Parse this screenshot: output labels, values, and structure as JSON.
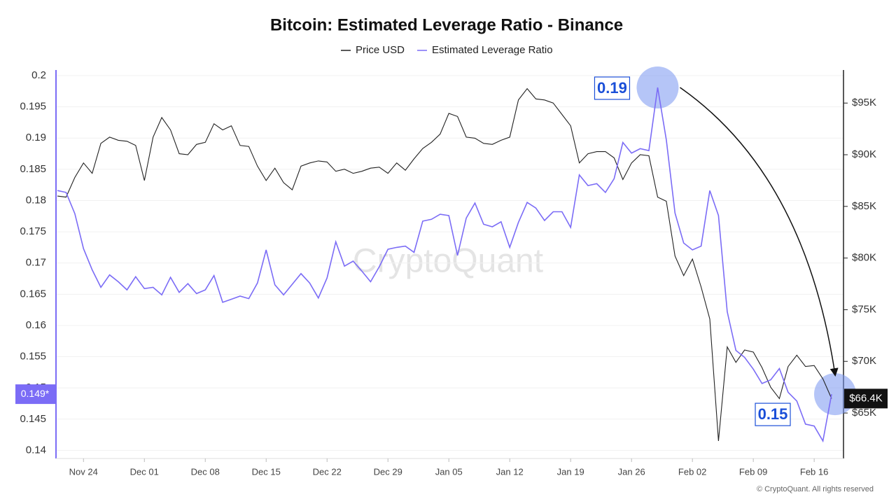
{
  "chart_data": {
    "type": "line",
    "title": "Bitcoin: Estimated Leverage Ratio - Binance",
    "watermark": "CryptoQuant",
    "footer": "© CryptoQuant. All rights reserved",
    "grid": true,
    "legend": "top",
    "categories": [
      null,
      null,
      null,
      "Nov 24",
      null,
      null,
      null,
      null,
      null,
      null,
      "Dec 01",
      null,
      null,
      null,
      null,
      null,
      null,
      "Dec 08",
      null,
      null,
      null,
      null,
      null,
      null,
      "Dec 15",
      null,
      null,
      null,
      null,
      null,
      null,
      "Dec 22",
      null,
      null,
      null,
      null,
      null,
      null,
      "Dec 29",
      null,
      null,
      null,
      null,
      null,
      null,
      "Jan 05",
      null,
      null,
      null,
      null,
      null,
      null,
      "Jan 12",
      null,
      null,
      null,
      null,
      null,
      null,
      "Jan 19",
      null,
      null,
      null,
      null,
      null,
      null,
      "Jan 26",
      null,
      null,
      null,
      null,
      null,
      null,
      "Feb 02",
      null,
      null,
      null,
      null,
      null,
      null,
      "Feb 09",
      null,
      null,
      null,
      null,
      null,
      null,
      "Feb 16",
      null,
      null
    ],
    "series": [
      {
        "name": "Price USD",
        "color": "#222222",
        "axis": "y2",
        "values": [
          86000,
          85900,
          87800,
          89200,
          88200,
          91100,
          91700,
          91400,
          91300,
          90900,
          87500,
          91700,
          93600,
          92400,
          90100,
          90000,
          91000,
          91200,
          93000,
          92400,
          92800,
          90900,
          90800,
          88900,
          87500,
          88700,
          87300,
          86600,
          88900,
          89200,
          89400,
          89300,
          88400,
          88600,
          88200,
          88400,
          88700,
          88800,
          88200,
          89200,
          88500,
          89600,
          90600,
          91200,
          92000,
          94000,
          93700,
          91700,
          91600,
          91100,
          91000,
          91400,
          91700,
          95300,
          96400,
          95400,
          95300,
          95000,
          93900,
          92800,
          89200,
          90100,
          90300,
          90300,
          89700,
          87600,
          89200,
          90000,
          89900,
          85900,
          85500,
          80200,
          78300,
          79900,
          77200,
          74100,
          62300,
          71400,
          69900,
          71100,
          70900,
          69400,
          67500,
          66400,
          69500,
          70600,
          69500,
          69600,
          68300,
          66400
        ]
      },
      {
        "name": "Estimated Leverage Ratio",
        "color": "#7b6cf6",
        "values": [
          0.1816,
          0.1813,
          0.1779,
          0.1723,
          0.1689,
          0.1661,
          0.1681,
          0.167,
          0.1657,
          0.1678,
          0.1659,
          0.1661,
          0.1649,
          0.1677,
          0.1653,
          0.1667,
          0.1651,
          0.1657,
          0.168,
          0.1637,
          0.1642,
          0.1647,
          0.1643,
          0.1668,
          0.1721,
          0.1665,
          0.1649,
          0.1666,
          0.1683,
          0.1668,
          0.1644,
          0.1676,
          0.1734,
          0.1695,
          0.1703,
          0.1687,
          0.167,
          0.1694,
          0.1722,
          0.1725,
          0.1727,
          0.1717,
          0.1767,
          0.177,
          0.1778,
          0.1776,
          0.1712,
          0.1772,
          0.1796,
          0.1762,
          0.1758,
          0.1766,
          0.1725,
          0.1765,
          0.1797,
          0.1788,
          0.1768,
          0.1782,
          0.1782,
          0.1757,
          0.1841,
          0.1824,
          0.1827,
          0.1813,
          0.1835,
          0.1893,
          0.1876,
          0.1883,
          0.188,
          0.1981,
          0.1897,
          0.178,
          0.1732,
          0.1721,
          0.1727,
          0.1816,
          0.1776,
          0.1622,
          0.156,
          0.1549,
          0.153,
          0.1507,
          0.1513,
          0.1531,
          0.1493,
          0.1479,
          0.1442,
          0.1439,
          0.1415,
          0.149
        ]
      }
    ],
    "ylim": [
      0.1387,
      0.2009
    ],
    "yticks": [
      0.14,
      0.145,
      0.15,
      0.155,
      0.16,
      0.165,
      0.17,
      0.175,
      0.18,
      0.185,
      0.19,
      0.195,
      0.2
    ],
    "y_current": {
      "value": 0.149,
      "label": "0.149*"
    },
    "y2lim": [
      60600,
      98200
    ],
    "y2ticks": [
      {
        "value": 65000,
        "label": "$65K"
      },
      {
        "value": 70000,
        "label": "$70K"
      },
      {
        "value": 75000,
        "label": "$75K"
      },
      {
        "value": 80000,
        "label": "$80K"
      },
      {
        "value": 85000,
        "label": "$85K"
      },
      {
        "value": 90000,
        "label": "$90K"
      },
      {
        "value": 95000,
        "label": "$95K"
      }
    ],
    "y2_current": {
      "value": 66400,
      "label": "$66.4K"
    },
    "annotations": [
      "0.19",
      "0.15"
    ]
  }
}
